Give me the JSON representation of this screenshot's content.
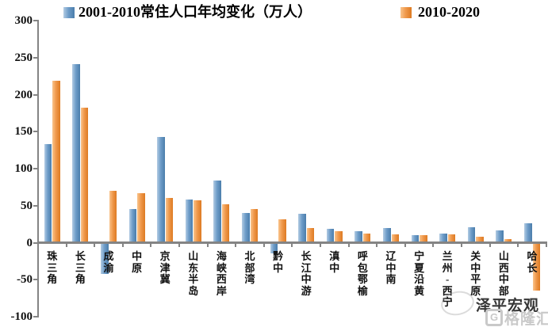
{
  "legend": {
    "series1_label": "2001-2010常住人口年均变化（万人）",
    "series2_label": "2010-2020"
  },
  "chart_data": {
    "type": "bar",
    "title": "",
    "xlabel": "",
    "ylabel": "",
    "grid": false,
    "legend_position": "top",
    "ylim": [
      -100,
      300
    ],
    "yticks": [
      300,
      250,
      200,
      150,
      100,
      50,
      0,
      -50,
      -100
    ],
    "categories": [
      "珠三角",
      "长三角",
      "成渝",
      "中原",
      "京津冀",
      "山东半岛",
      "海峡西岸",
      "北部湾",
      "黔中",
      "长江中游",
      "滇中",
      "呼包鄂榆",
      "辽中南",
      "宁夏沿黄",
      "兰州-西宁",
      "关中平原",
      "山西中部",
      "哈长"
    ],
    "series": [
      {
        "name": "2001-2010常住人口年均变化（万人）",
        "color": "#6f9dc9",
        "values": [
          133,
          241,
          -42,
          45,
          143,
          58,
          84,
          40,
          -14,
          39,
          19,
          16,
          20,
          10,
          12,
          21,
          17,
          26
        ]
      },
      {
        "name": "2010-2020",
        "color": "#f09a4d",
        "values": [
          219,
          182,
          70,
          67,
          60,
          57,
          52,
          45,
          32,
          20,
          16,
          12,
          11,
          10,
          11,
          8,
          5,
          -65
        ]
      }
    ]
  },
  "watermark": {
    "brand": "泽平宏观",
    "logo_letter": "G",
    "logo_text": "格隆汇"
  },
  "colors": {
    "blue": "#6f9dc9",
    "orange": "#f09a4d",
    "axis": "#848484"
  }
}
